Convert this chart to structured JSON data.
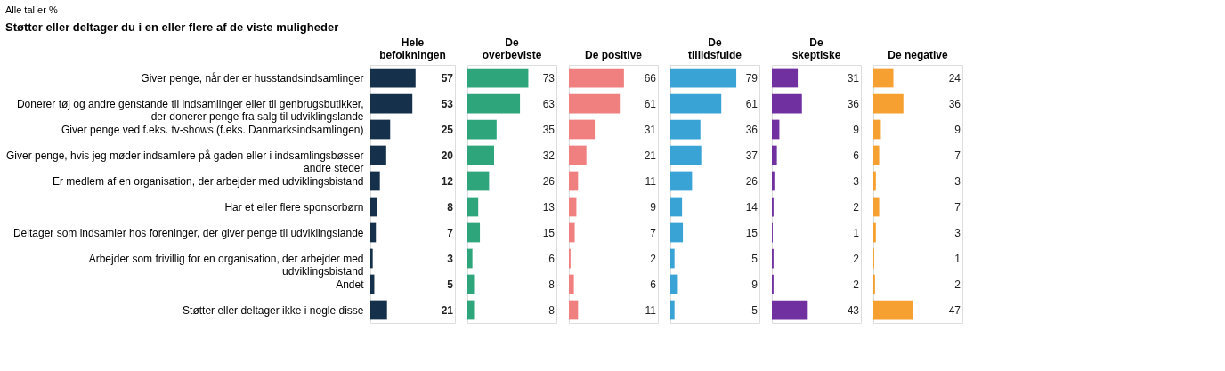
{
  "chart_data": [
    {
      "type": "bar",
      "orientation": "horizontal",
      "title": "Hele befolkningen",
      "subtitle": "Støtter eller deltager du i en eller flere af de viste muligheder",
      "annotations": [
        "Alle tal er %"
      ],
      "categories": [
        "Giver penge, når der er husstandsindsamlinger",
        "Donerer tøj og andre genstande til indsamlinger eller til genbrugsbutikker, der donerer penge fra salg til udviklingslande",
        "Giver penge ved f.eks. tv-shows (f.eks. Danmarksindsamlingen)",
        "Giver penge, hvis jeg møder indsamlere på gaden eller i indsamlingsbøsser andre steder",
        "Er medlem af en organisation, der arbejder med udviklingsbistand",
        "Har et eller flere sponsorbørn",
        "Deltager som indsamler hos foreninger, der giver penge til udviklingslande",
        "Arbejder som frivillig for en organisation, der arbejder med udviklingsbistand",
        "Andet",
        "Støtter eller deltager ikke i nogle disse"
      ],
      "values": [
        57,
        53,
        25,
        20,
        12,
        8,
        7,
        3,
        5,
        21
      ],
      "color": "#14304a",
      "data_labels": true,
      "tick_labels": "y",
      "grid": false
    },
    {
      "type": "bar",
      "orientation": "horizontal",
      "title": "De overbeviste",
      "categories": [
        null,
        null,
        null,
        null,
        null,
        null,
        null,
        null,
        null,
        null
      ],
      "values": [
        73,
        63,
        35,
        32,
        26,
        13,
        15,
        6,
        8,
        8
      ],
      "color": "#2ea57a",
      "data_labels": true,
      "tick_labels": false,
      "grid": false
    },
    {
      "type": "bar",
      "orientation": "horizontal",
      "title": "De positive",
      "categories": [
        null,
        null,
        null,
        null,
        null,
        null,
        null,
        null,
        null,
        null
      ],
      "values": [
        66,
        61,
        31,
        21,
        11,
        9,
        7,
        2,
        6,
        11
      ],
      "color": "#f08080",
      "data_labels": true,
      "tick_labels": false,
      "grid": false
    },
    {
      "type": "bar",
      "orientation": "horizontal",
      "title": "De tillidsfulde",
      "categories": [
        null,
        null,
        null,
        null,
        null,
        null,
        null,
        null,
        null,
        null
      ],
      "values": [
        79,
        61,
        36,
        37,
        26,
        14,
        15,
        5,
        9,
        5
      ],
      "color": "#3aa3d6",
      "data_labels": true,
      "tick_labels": false,
      "grid": false
    },
    {
      "type": "bar",
      "orientation": "horizontal",
      "title": "De skeptiske",
      "categories": [
        null,
        null,
        null,
        null,
        null,
        null,
        null,
        null,
        null,
        null
      ],
      "values": [
        31,
        36,
        9,
        6,
        3,
        2,
        1,
        2,
        2,
        43
      ],
      "color": "#7030a0",
      "data_labels": true,
      "tick_labels": false,
      "grid": false
    },
    {
      "type": "bar",
      "orientation": "horizontal",
      "title": "De negative",
      "categories": [
        null,
        null,
        null,
        null,
        null,
        null,
        null,
        null,
        null,
        null
      ],
      "values": [
        24,
        36,
        9,
        7,
        3,
        7,
        3,
        1,
        2,
        47
      ],
      "color": "#f5a030",
      "data_labels": true,
      "tick_labels": false,
      "grid": false
    }
  ]
}
